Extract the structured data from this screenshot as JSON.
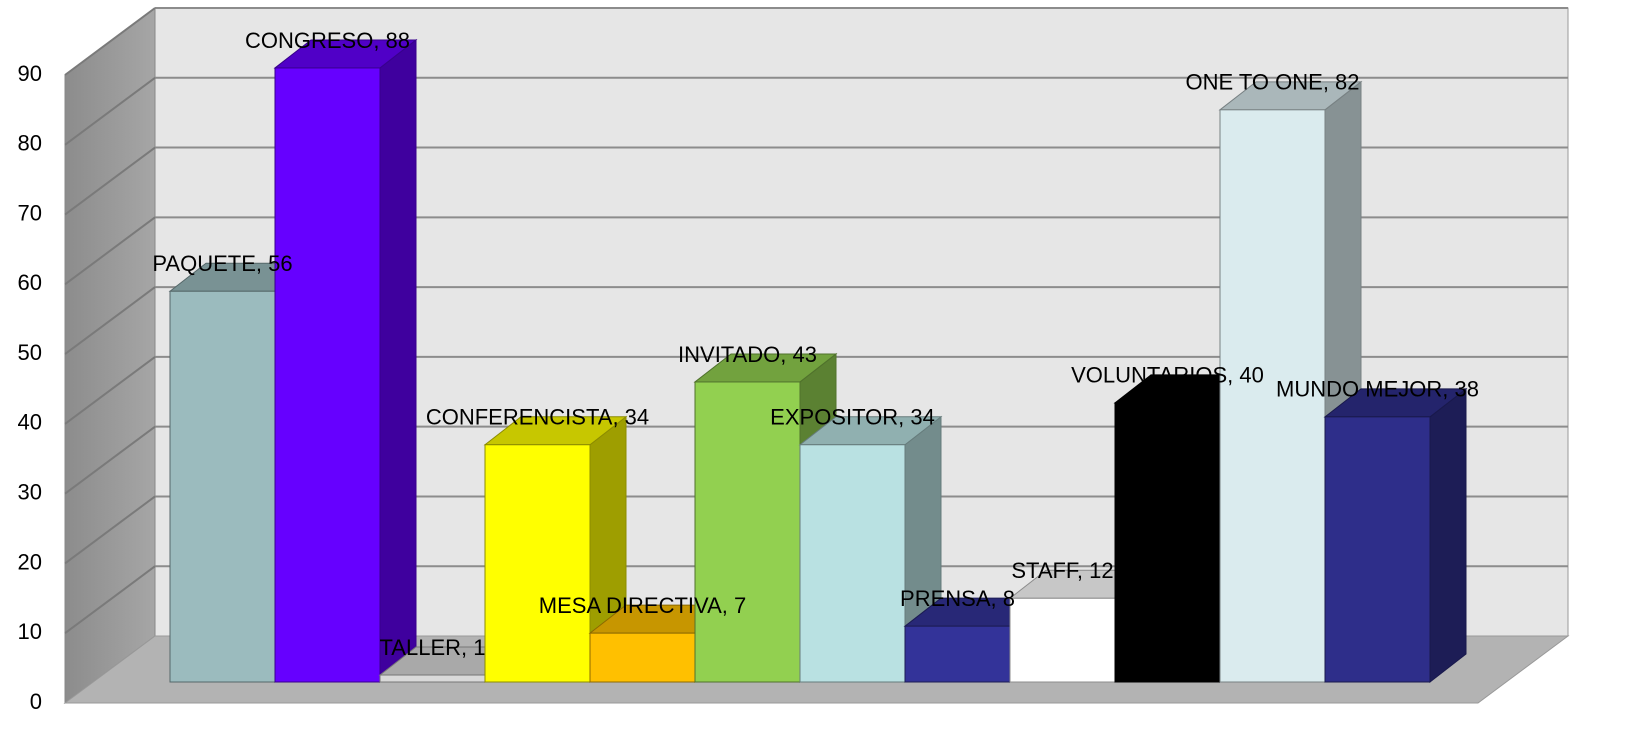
{
  "chart_data": {
    "type": "bar3d",
    "categories": [
      "PAQUETE",
      "CONGRESO",
      "TALLER",
      "CONFERENCISTA",
      "MESA DIRECTIVA",
      "INVITADO",
      "EXPOSITOR",
      "PRENSA",
      "STAFF",
      "VOLUNTARIOS",
      "ONE TO ONE",
      "MUNDO MEJOR"
    ],
    "values": [
      56,
      88,
      1,
      34,
      7,
      43,
      34,
      8,
      12,
      40,
      82,
      38
    ],
    "value_labels": [
      "PAQUETE, 56",
      "CONGRESO, 88",
      "TALLER, 1",
      "CONFERENCISTA, 34",
      "MESA DIRECTIVA, 7",
      "INVITADO, 43",
      "EXPOSITOR, 34",
      "PRENSA, 8",
      "STAFF, 12",
      "VOLUNTARIOS, 40",
      "ONE TO ONE, 82",
      "MUNDO MEJOR, 38"
    ],
    "colors": [
      "#9bbbbe",
      "#6600ff",
      "#d9d9d9",
      "#ffff00",
      "#ffc000",
      "#92d050",
      "#b9e1e2",
      "#333399",
      "#ffffff",
      "#000000",
      "#daebee",
      "#2e2e8a"
    ],
    "ylim": [
      0,
      90
    ],
    "yticks": [
      0,
      10,
      20,
      30,
      40,
      50,
      60,
      70,
      80,
      90
    ],
    "grid": true
  }
}
